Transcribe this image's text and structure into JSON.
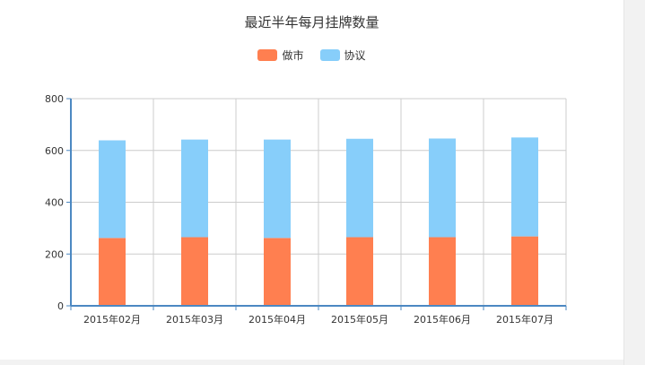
{
  "chart_data": {
    "type": "bar",
    "stacked": true,
    "title": "最近半年每月挂牌数量",
    "categories": [
      "2015年02月",
      "2015年03月",
      "2015年04月",
      "2015年05月",
      "2015年06月",
      "2015年07月"
    ],
    "series": [
      {
        "name": "做市",
        "color": "#FF7F50",
        "values": [
          262,
          265,
          262,
          265,
          265,
          268
        ]
      },
      {
        "name": "协议",
        "color": "#87CEFA",
        "values": [
          377,
          377,
          380,
          380,
          381,
          382
        ]
      }
    ],
    "ylim": [
      0,
      800
    ],
    "yticks": [
      0,
      200,
      400,
      600,
      800
    ],
    "grid": true,
    "legend_position": "top-center"
  }
}
